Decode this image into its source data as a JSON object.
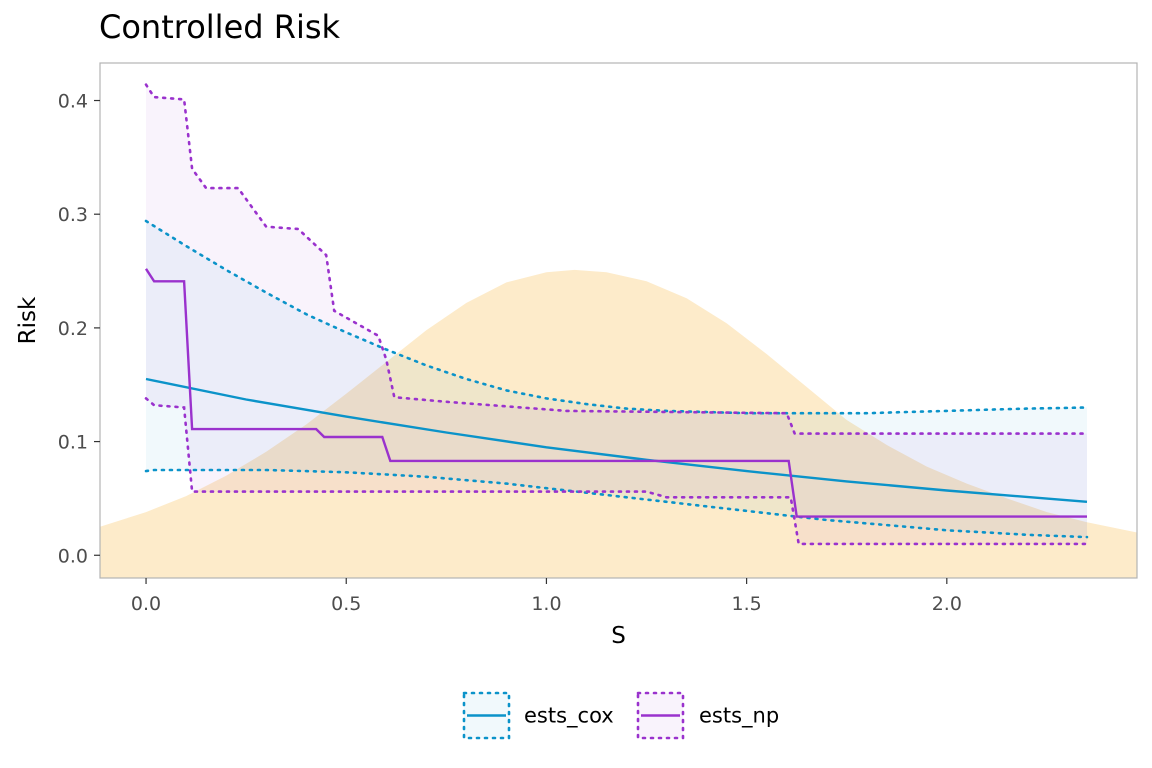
{
  "chart_data": {
    "type": "line",
    "title": "Controlled Risk",
    "xlabel": "S",
    "ylabel": "Risk",
    "xlim": [
      -0.115,
      2.475
    ],
    "ylim": [
      -0.02,
      0.433
    ],
    "x_ticks": [
      0.0,
      0.5,
      1.0,
      1.5,
      2.0
    ],
    "x_tick_labels": [
      "0.0",
      "0.5",
      "1.0",
      "1.5",
      "2.0"
    ],
    "y_ticks": [
      0.0,
      0.1,
      0.2,
      0.3,
      0.4
    ],
    "y_tick_labels": [
      "0.0",
      "0.1",
      "0.2",
      "0.3",
      "0.4"
    ],
    "grid": false,
    "legend_position": "bottom",
    "density": {
      "color": "#FDEBCA",
      "x": [
        -0.115,
        0.0,
        0.1,
        0.2,
        0.3,
        0.4,
        0.5,
        0.6,
        0.7,
        0.8,
        0.9,
        1.0,
        1.07,
        1.15,
        1.25,
        1.35,
        1.45,
        1.55,
        1.65,
        1.75,
        1.85,
        1.95,
        2.05,
        2.15,
        2.25,
        2.35,
        2.475
      ],
      "y": [
        0.025,
        0.038,
        0.052,
        0.07,
        0.091,
        0.115,
        0.142,
        0.17,
        0.198,
        0.222,
        0.24,
        0.249,
        0.251,
        0.249,
        0.241,
        0.226,
        0.204,
        0.177,
        0.148,
        0.119,
        0.097,
        0.078,
        0.063,
        0.05,
        0.038,
        0.029,
        0.02
      ]
    },
    "series": [
      {
        "name": "ests_cox",
        "color": "#0B93C9",
        "x": [
          0.0,
          0.25,
          0.5,
          0.75,
          1.0,
          1.25,
          1.5,
          1.75,
          2.0,
          2.35
        ],
        "y": [
          0.155,
          0.137,
          0.122,
          0.108,
          0.095,
          0.084,
          0.074,
          0.065,
          0.057,
          0.047
        ],
        "upper_x": [
          0.0,
          0.1,
          0.2,
          0.3,
          0.4,
          0.5,
          0.6,
          0.7,
          0.8,
          0.9,
          1.0,
          1.1,
          1.2,
          1.3,
          1.4,
          1.5,
          1.6,
          1.7,
          1.8,
          1.9,
          2.0,
          2.1,
          2.2,
          2.35
        ],
        "upper_y": [
          0.294,
          0.272,
          0.251,
          0.231,
          0.212,
          0.196,
          0.181,
          0.167,
          0.155,
          0.145,
          0.138,
          0.133,
          0.129,
          0.127,
          0.126,
          0.125,
          0.125,
          0.125,
          0.125,
          0.126,
          0.127,
          0.128,
          0.129,
          0.13
        ],
        "lower_x": [
          0.0,
          0.02,
          0.1,
          0.2,
          0.3,
          0.4,
          0.5,
          0.6,
          0.7,
          0.8,
          0.9,
          1.0,
          1.1,
          1.2,
          1.3,
          1.4,
          1.5,
          1.6,
          1.7,
          1.8,
          1.9,
          2.0,
          2.1,
          2.2,
          2.35
        ],
        "lower_y": [
          0.074,
          0.075,
          0.075,
          0.075,
          0.075,
          0.074,
          0.073,
          0.071,
          0.069,
          0.066,
          0.063,
          0.059,
          0.055,
          0.051,
          0.047,
          0.043,
          0.039,
          0.035,
          0.031,
          0.028,
          0.025,
          0.022,
          0.02,
          0.018,
          0.016
        ]
      },
      {
        "name": "ests_np",
        "color": "#9A32CD",
        "x": [
          0.0,
          0.02,
          0.095,
          0.115,
          0.425,
          0.445,
          0.59,
          0.61,
          1.605,
          1.625,
          2.35
        ],
        "y": [
          0.252,
          0.241,
          0.241,
          0.111,
          0.111,
          0.104,
          0.104,
          0.083,
          0.083,
          0.034,
          0.034
        ],
        "upper_x": [
          0.0,
          0.02,
          0.095,
          0.115,
          0.15,
          0.23,
          0.3,
          0.38,
          0.45,
          0.47,
          0.58,
          0.6,
          0.62,
          0.75,
          1.05,
          1.6,
          1.62,
          2.35
        ],
        "upper_y": [
          0.414,
          0.403,
          0.401,
          0.34,
          0.323,
          0.323,
          0.289,
          0.287,
          0.264,
          0.215,
          0.193,
          0.172,
          0.139,
          0.135,
          0.127,
          0.125,
          0.107,
          0.107
        ],
        "lower_x": [
          0.0,
          0.02,
          0.095,
          0.115,
          0.3,
          0.6,
          1.0,
          1.25,
          1.3,
          1.61,
          1.63,
          2.35
        ],
        "lower_y": [
          0.138,
          0.132,
          0.13,
          0.056,
          0.056,
          0.056,
          0.056,
          0.056,
          0.051,
          0.051,
          0.01,
          0.01
        ]
      }
    ]
  }
}
